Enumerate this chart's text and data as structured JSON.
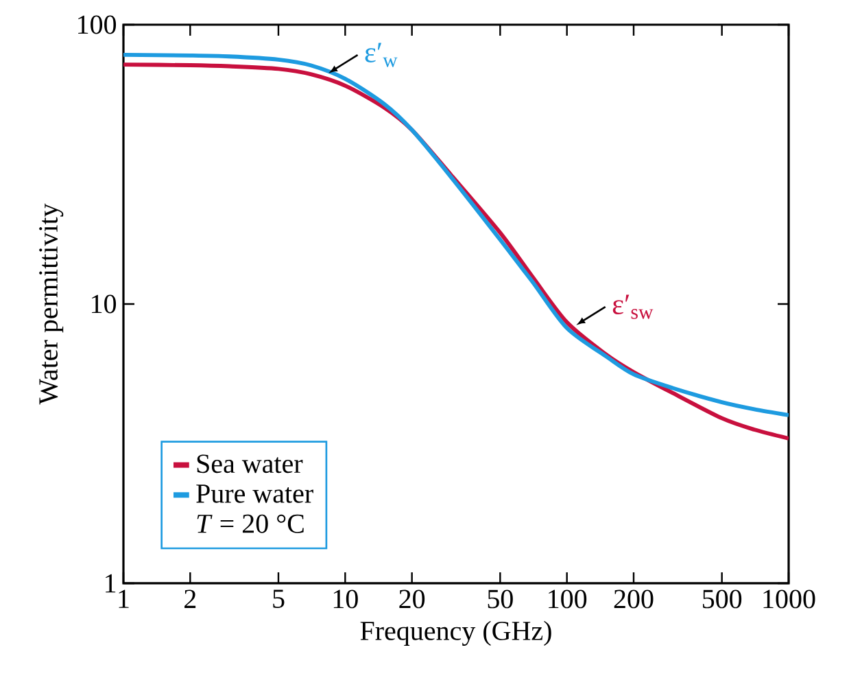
{
  "chart_data": {
    "type": "line",
    "xlabel": "Frequency (GHz)",
    "ylabel": "Water permittivity",
    "log": "xy",
    "xlim": [
      1,
      1000
    ],
    "ylim": [
      1,
      100
    ],
    "xticks": [
      1,
      2,
      5,
      10,
      20,
      50,
      100,
      200,
      500,
      1000
    ],
    "yticks": [
      1,
      10,
      100
    ],
    "grid": false,
    "legend": "bottom left",
    "legend_title": "*T* = 20 °C",
    "marker": "none",
    "line_style": "solid",
    "series": [
      {
        "name": "Sea water",
        "color": "#c8103e",
        "x": [
          1,
          2,
          3,
          5,
          7,
          10,
          15,
          20,
          30,
          50,
          70,
          100,
          150,
          200,
          300,
          500,
          700,
          1000
        ],
        "values": [
          72,
          71.6,
          71,
          69.5,
          66.5,
          60.5,
          50.5,
          42,
          29,
          18,
          12.5,
          8.6,
          6.6,
          5.7,
          4.8,
          3.9,
          3.55,
          3.3
        ]
      },
      {
        "name": "Pure water",
        "color": "#1e9be0",
        "x": [
          1,
          2,
          3,
          5,
          7,
          10,
          15,
          20,
          30,
          50,
          70,
          100,
          150,
          200,
          300,
          500,
          700,
          1000
        ],
        "values": [
          78,
          77.6,
          77,
          75,
          71.5,
          64,
          52,
          42,
          28.5,
          17,
          12,
          8.2,
          6.5,
          5.6,
          5.0,
          4.45,
          4.2,
          4.0
        ]
      }
    ],
    "annotations": [
      {
        "text": "ε′$_{w}$",
        "x": 8.4,
        "y": 67
      },
      {
        "text": "ε′$_{sw}$",
        "x": 110,
        "y": 8.4
      }
    ]
  }
}
